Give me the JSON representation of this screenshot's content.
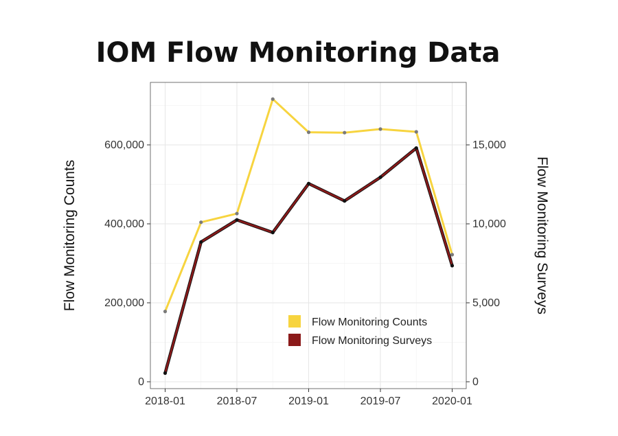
{
  "chart_data": {
    "type": "line",
    "title": "IOM Flow Monitoring Data",
    "x": [
      "2018-01",
      "2018-04",
      "2018-07",
      "2018-10",
      "2019-01",
      "2019-04",
      "2019-07",
      "2019-10",
      "2020-01"
    ],
    "x_tick_labels": [
      "2018-01",
      "2018-07",
      "2019-01",
      "2019-07",
      "2020-01"
    ],
    "ylabel_left": "Flow Monitoring Counts",
    "ylabel_right": "Flow Monitoring Surveys",
    "ylim_left": [
      0,
      720000
    ],
    "ylim_right": [
      0,
      18000
    ],
    "y_ticks_left": [
      "0",
      "200,000",
      "400,000",
      "600,000"
    ],
    "y_ticks_right": [
      "0",
      "5,000",
      "10,000",
      "15,000"
    ],
    "grid": true,
    "legend_position": "bottom-right",
    "series": [
      {
        "name": "Flow Monitoring Counts",
        "axis": "left",
        "color": "#f7d43f",
        "values": [
          178000,
          404000,
          426000,
          716000,
          632000,
          631000,
          640000,
          633000,
          322000
        ]
      },
      {
        "name": "Flow Monitoring Surveys",
        "axis": "right",
        "color": "#8b1a1a",
        "values": [
          550,
          8850,
          10250,
          9450,
          12550,
          11450,
          12950,
          14800,
          7350
        ]
      }
    ]
  }
}
